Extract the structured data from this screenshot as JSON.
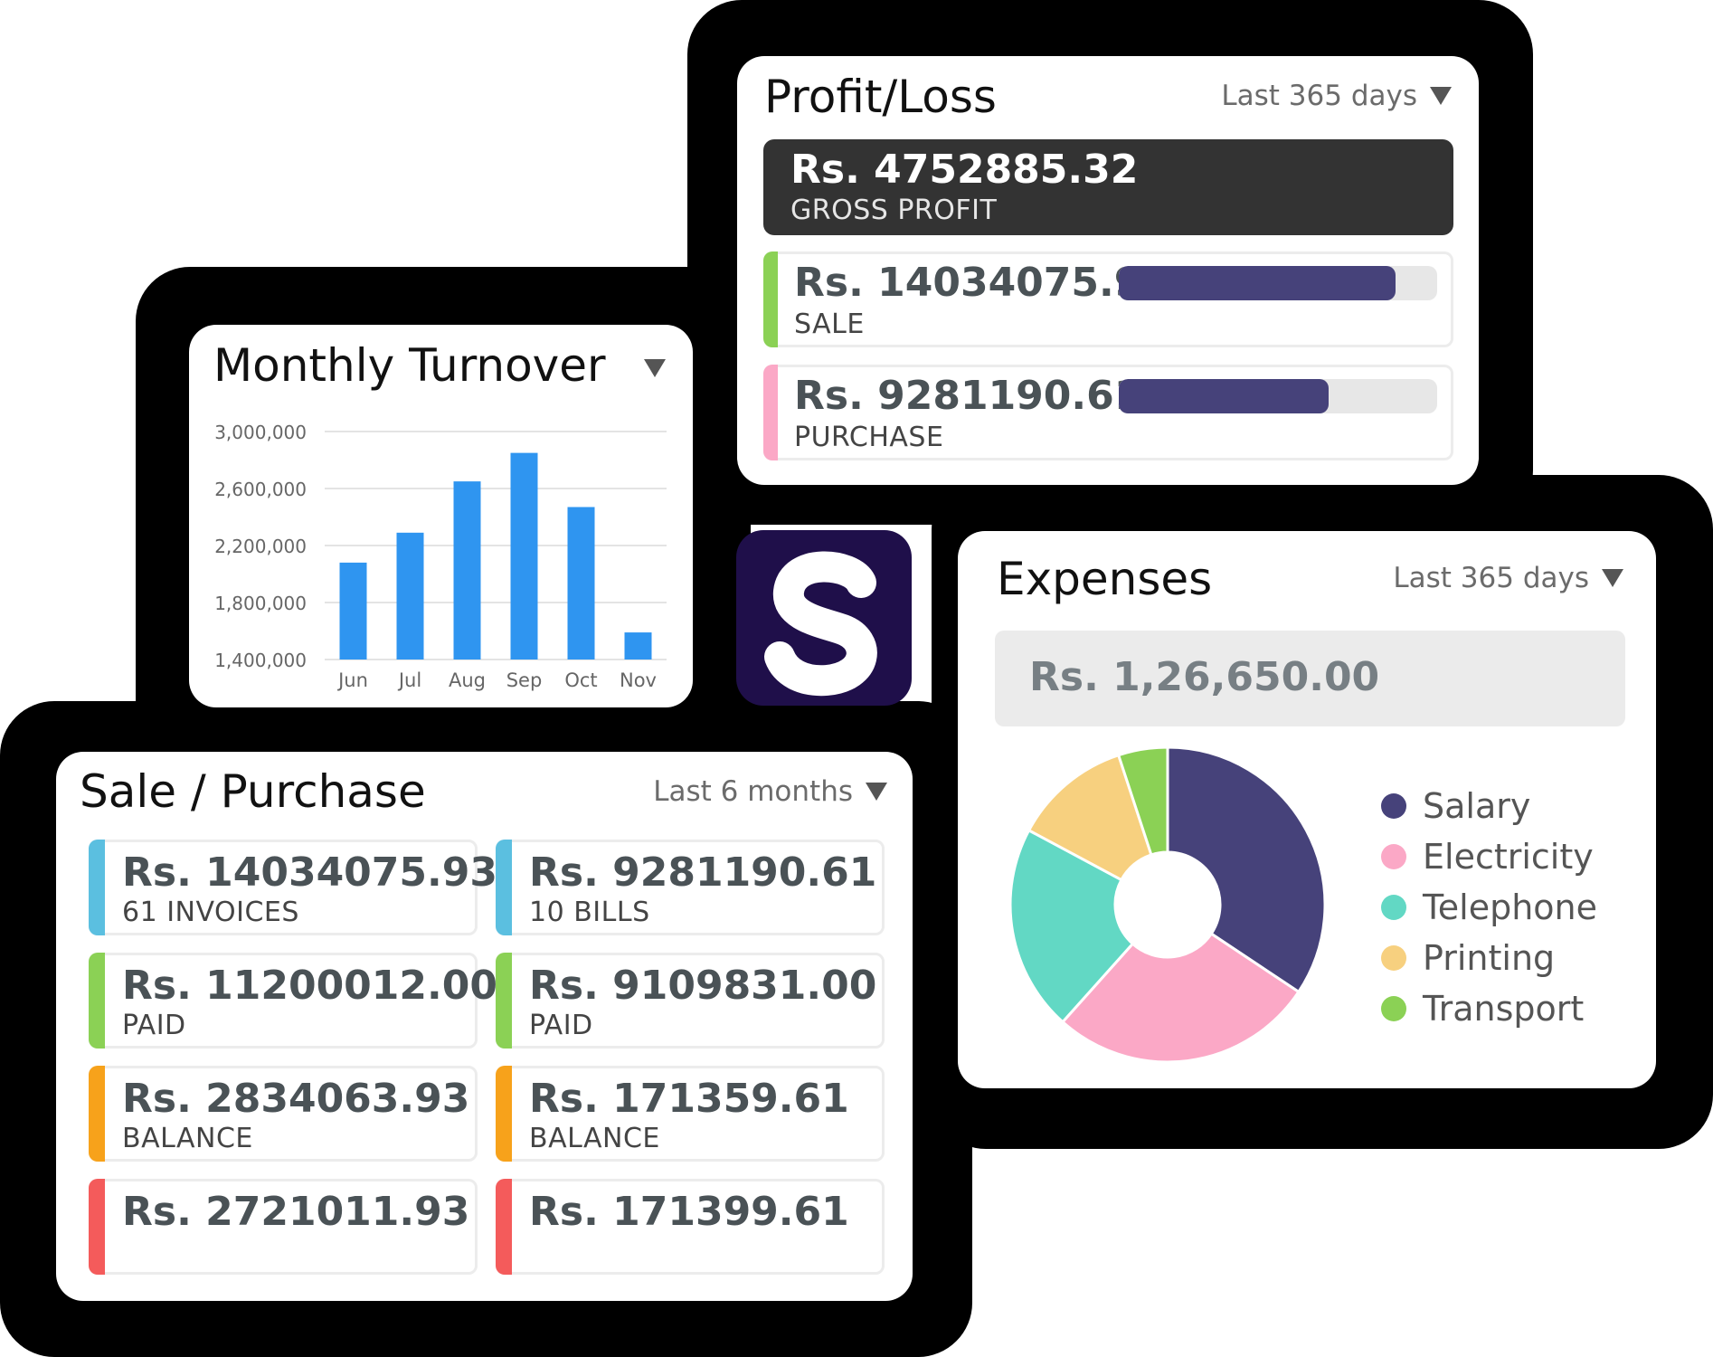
{
  "profit_loss": {
    "title": "Profit/Loss",
    "period": "Last 365 days",
    "gross": {
      "amount": "Rs. 4752885.32",
      "label": "GROSS PROFIT"
    },
    "rows": [
      {
        "amount": "Rs. 14034075.93",
        "label": "SALE",
        "color": "#8bd155",
        "fill": 0.87
      },
      {
        "amount": "Rs. 9281190.61",
        "label": "PURCHASE",
        "color": "#fba8c6",
        "fill": 0.66
      }
    ]
  },
  "monthly_turnover": {
    "title": "Monthly Turnover"
  },
  "chart_data": {
    "type": "bar",
    "categories": [
      "Jun",
      "Jul",
      "Aug",
      "Sep",
      "Oct",
      "Nov"
    ],
    "values": [
      2080000,
      2290000,
      2650000,
      2850000,
      2470000,
      1590000
    ],
    "yticks": [
      "3,000,000",
      "2,600,000",
      "2,200,000",
      "1,800,000",
      "1,400,000"
    ],
    "ylim": [
      1400000,
      3000000
    ],
    "grid": true,
    "bar_color": "#2f95f0",
    "title": "",
    "xlabel": "",
    "ylabel": ""
  },
  "sale_purchase": {
    "title": "Sale / Purchase",
    "period": "Last 6 months",
    "left": [
      {
        "amount": "Rs. 14034075.93",
        "label": "61 INVOICES",
        "color": "#5bbfe0"
      },
      {
        "amount": "Rs. 11200012.00",
        "label": "PAID",
        "color": "#8bd155"
      },
      {
        "amount": "Rs. 2834063.93",
        "label": "BALANCE",
        "color": "#f7a21b"
      },
      {
        "amount": "Rs. 2721011.93",
        "label": "",
        "color": "#f45b5b"
      }
    ],
    "right": [
      {
        "amount": "Rs. 9281190.61",
        "label": "10 BILLS",
        "color": "#5bbfe0"
      },
      {
        "amount": "Rs. 9109831.00",
        "label": "PAID",
        "color": "#8bd155"
      },
      {
        "amount": "Rs. 171359.61",
        "label": "BALANCE",
        "color": "#f7a21b"
      },
      {
        "amount": "Rs. 171399.61",
        "label": "",
        "color": "#f45b5b"
      }
    ]
  },
  "expenses": {
    "title": "Expenses",
    "period": "Last 365 days",
    "total": "Rs. 1,26,650.00",
    "legend": [
      {
        "name": "Salary",
        "color": "#46427a",
        "value": 34
      },
      {
        "name": "Electricity",
        "color": "#fba8c6",
        "value": 27
      },
      {
        "name": "Telephone",
        "color": "#62d8c4",
        "value": 21
      },
      {
        "name": "Printing",
        "color": "#f7d07f",
        "value": 12
      },
      {
        "name": "Transport",
        "color": "#8bd155",
        "value": 5
      }
    ]
  },
  "logo": {
    "letter": "S"
  }
}
